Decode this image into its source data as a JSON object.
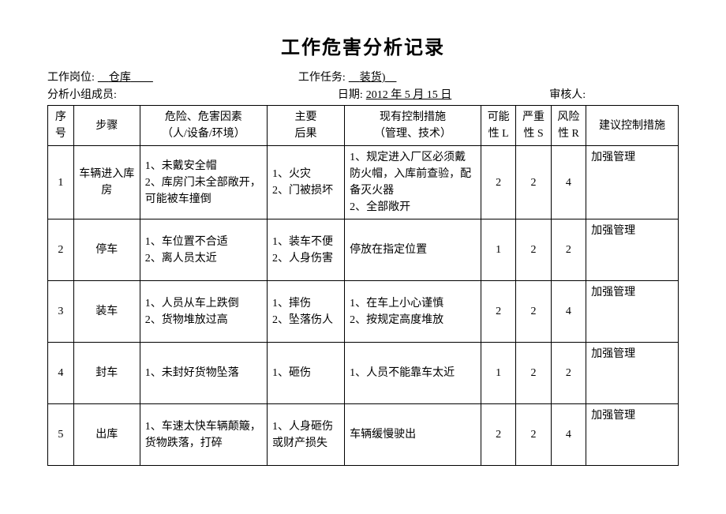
{
  "title": "工作危害分析记录",
  "meta": {
    "position_label": "工作岗位:",
    "position_value": "仓库",
    "task_label": "工作任务:",
    "task_value": "装货)",
    "team_label": "分析小组成员:",
    "date_label": "日期:",
    "date_value": "2012 年 5 月 15 日",
    "reviewer_label": "审核人:"
  },
  "columns": {
    "idx": "序号",
    "step": "步骤",
    "hazard_l1": "危险、危害因素",
    "hazard_l2": "（人/设备/环境）",
    "consequence_l1": "主要",
    "consequence_l2": "后果",
    "control_l1": "现有控制措施",
    "control_l2": "（管理、技术）",
    "l_l1": "可能",
    "l_l2": "性 L",
    "s_l1": "严重",
    "s_l2": "性 S",
    "r_l1": "风险",
    "r_l2": "性 R",
    "suggest": "建议控制措施"
  },
  "rows": [
    {
      "idx": "1",
      "step": "车辆进入库房",
      "hazard": "1、未戴安全帽\n2、库房门未全部敞开，可能被车撞倒",
      "consequence": "1、火灾\n2、门被损坏",
      "control": "1、规定进入厂区必须戴防火帽，入库前查验，配备灭火器\n2、全部敞开",
      "l": "2",
      "s": "2",
      "r": "4",
      "suggest": "加强管理"
    },
    {
      "idx": "2",
      "step": "停车",
      "hazard": "1、车位置不合适\n2、离人员太近",
      "consequence": "1、装车不便\n2、人身伤害",
      "control": "停放在指定位置",
      "l": "1",
      "s": "2",
      "r": "2",
      "suggest": "加强管理"
    },
    {
      "idx": "3",
      "step": "装车",
      "hazard": "1、人员从车上跌倒\n2、货物堆放过高",
      "consequence": "1、摔伤\n2、坠落伤人",
      "control": "1、在车上小心谨慎\n2、按规定高度堆放",
      "l": "2",
      "s": "2",
      "r": "4",
      "suggest": "加强管理"
    },
    {
      "idx": "4",
      "step": "封车",
      "hazard": "1、未封好货物坠落",
      "consequence": "1、砸伤",
      "control": "1、人员不能靠车太近",
      "l": "1",
      "s": "2",
      "r": "2",
      "suggest": "加强管理"
    },
    {
      "idx": "5",
      "step": "出库",
      "hazard": "1、车速太快车辆颠簸，货物跌落，打碎",
      "consequence": "1、人身砸伤或财产损失",
      "control": "车辆缓慢驶出",
      "l": "2",
      "s": "2",
      "r": "4",
      "suggest": "加强管理"
    }
  ]
}
